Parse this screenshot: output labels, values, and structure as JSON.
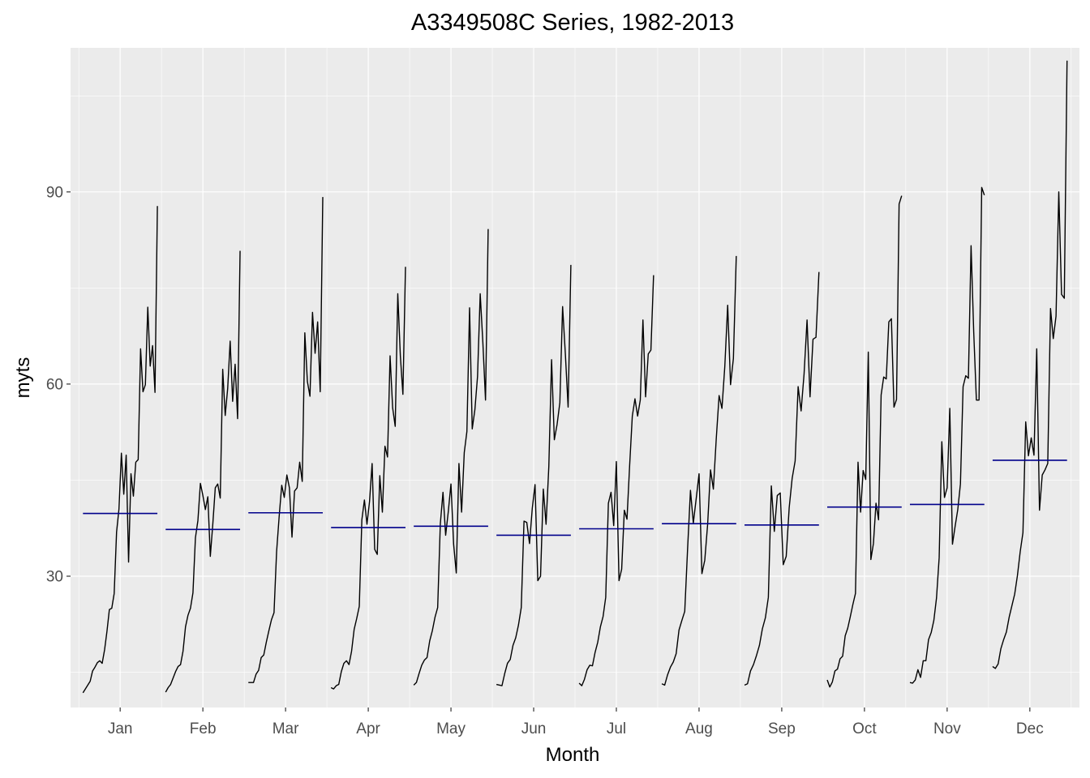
{
  "chart_data": {
    "type": "line",
    "subtype": "seasonal-subseries",
    "title": "A3349508C Series, 1982-2013",
    "xlabel": "Month",
    "ylabel": "myts",
    "ylim": [
      9.5,
      112.5
    ],
    "y_ticks": [
      30,
      60,
      90
    ],
    "grid": true,
    "series_color": "#000000",
    "mean_color": "#00008b",
    "panel_color": "#ebebeb",
    "grid_color": "#ffffff",
    "years": [
      1982,
      2013
    ],
    "months": [
      {
        "label": "Jan",
        "mean": 39.8,
        "values": [
          11.8,
          12.4,
          13.0,
          13.6,
          15.2,
          15.8,
          16.5,
          16.8,
          16.4,
          18.5,
          21.4,
          24.8,
          25.0,
          27.3,
          36.9,
          40.5,
          49.2,
          42.8,
          48.9,
          32.2,
          46.0,
          42.5,
          47.8,
          48.2,
          65.5,
          58.8,
          59.9,
          72.0,
          62.8,
          66.0,
          58.7,
          87.8
        ]
      },
      {
        "label": "Feb",
        "mean": 37.3,
        "values": [
          11.9,
          12.6,
          13.1,
          14.1,
          15.1,
          15.9,
          16.2,
          18.3,
          22.1,
          23.9,
          25.0,
          27.4,
          36.0,
          38.7,
          44.5,
          42.6,
          40.4,
          42.4,
          33.1,
          38.1,
          43.8,
          44.4,
          42.2,
          62.3,
          55.1,
          59.3,
          66.7,
          57.3,
          63.1,
          54.6,
          80.8
        ]
      },
      {
        "label": "Mar",
        "mean": 39.9,
        "values": [
          13.4,
          13.4,
          13.4,
          14.7,
          15.3,
          17.3,
          17.7,
          19.7,
          21.5,
          23.2,
          24.3,
          33.8,
          39.3,
          44.2,
          42.3,
          45.8,
          43.8,
          36.1,
          43.3,
          43.8,
          47.8,
          44.8,
          68.0,
          60.4,
          58.1,
          71.2,
          64.8,
          69.7,
          58.8,
          89.2
        ]
      },
      {
        "label": "Apr",
        "mean": 37.6,
        "values": [
          12.6,
          12.4,
          12.9,
          13.1,
          15.1,
          16.4,
          16.8,
          16.2,
          18.3,
          21.7,
          23.4,
          25.3,
          38.8,
          41.9,
          38.1,
          41.7,
          47.6,
          34.2,
          33.4,
          45.7,
          40.0,
          50.3,
          48.6,
          64.4,
          56.3,
          53.4,
          74.1,
          64.4,
          58.4,
          78.3
        ]
      },
      {
        "label": "May",
        "mean": 37.8,
        "values": [
          13.0,
          13.4,
          14.8,
          16.1,
          16.9,
          17.3,
          19.9,
          21.5,
          23.6,
          25.1,
          38.2,
          43.1,
          36.4,
          40.1,
          44.4,
          35.0,
          30.5,
          47.6,
          40.0,
          49.3,
          52.6,
          71.9,
          53.0,
          56.0,
          61.2,
          74.1,
          66.5,
          57.5,
          84.2
        ]
      },
      {
        "label": "Jun",
        "mean": 36.4,
        "values": [
          13.1,
          13.0,
          12.9,
          14.8,
          16.4,
          17.0,
          19.2,
          20.4,
          22.4,
          25.1,
          38.6,
          38.4,
          35.1,
          40.6,
          44.3,
          29.3,
          30.0,
          43.6,
          38.1,
          47.1,
          63.8,
          51.3,
          53.7,
          57.1,
          72.1,
          64.7,
          56.4,
          78.6
        ]
      },
      {
        "label": "Jul",
        "mean": 37.4,
        "values": [
          13.3,
          12.9,
          13.9,
          15.4,
          16.1,
          16.0,
          18.1,
          19.7,
          22.1,
          23.7,
          26.7,
          41.4,
          43.1,
          37.9,
          47.9,
          29.3,
          31.1,
          40.3,
          38.9,
          47.3,
          55.0,
          57.7,
          55.0,
          57.5,
          70.0,
          58.0,
          64.7,
          65.3,
          77.0
        ]
      },
      {
        "label": "Aug",
        "mean": 38.2,
        "values": [
          13.2,
          13.0,
          14.6,
          15.8,
          16.6,
          17.9,
          21.6,
          23.1,
          24.5,
          34.3,
          43.4,
          38.3,
          42.1,
          46.0,
          30.4,
          32.5,
          38.1,
          46.6,
          43.6,
          51.4,
          58.2,
          56.2,
          62.8,
          72.3,
          59.9,
          64.0,
          80.0
        ]
      },
      {
        "label": "Sep",
        "mean": 38.0,
        "values": [
          13.0,
          13.2,
          15.2,
          16.2,
          17.6,
          19.2,
          21.8,
          23.5,
          26.7,
          44.1,
          37.0,
          42.6,
          43.0,
          31.8,
          33.1,
          40.7,
          45.3,
          48.0,
          59.6,
          55.8,
          61.6,
          70.0,
          58.0,
          67.0,
          67.3,
          77.5
        ]
      },
      {
        "label": "Oct",
        "mean": 40.8,
        "values": [
          13.8,
          12.7,
          13.5,
          15.2,
          15.5,
          17.1,
          17.5,
          20.7,
          21.9,
          23.7,
          25.6,
          27.3,
          47.8,
          40.0,
          46.5,
          45.1,
          65.0,
          32.6,
          35.1,
          41.4,
          38.8,
          58.3,
          61.1,
          60.8,
          69.7,
          70.2,
          56.4,
          57.6,
          88.1,
          89.4
        ]
      },
      {
        "label": "Nov",
        "mean": 41.2,
        "values": [
          13.4,
          13.3,
          13.8,
          15.4,
          14.2,
          16.8,
          16.8,
          20.1,
          21.2,
          23.1,
          26.6,
          32.9,
          51.0,
          42.3,
          43.8,
          56.2,
          35.0,
          37.8,
          40.4,
          44.4,
          59.6,
          61.3,
          60.9,
          81.6,
          68.1,
          57.5,
          57.5,
          90.7,
          89.5
        ]
      },
      {
        "label": "Dec",
        "mean": 48.1,
        "values": [
          15.9,
          15.6,
          16.3,
          18.7,
          20.1,
          21.3,
          23.6,
          25.4,
          27.2,
          30.1,
          33.8,
          36.8,
          54.1,
          48.8,
          51.6,
          48.9,
          65.5,
          40.3,
          45.8,
          46.6,
          47.6,
          71.8,
          67.1,
          70.6,
          90.0,
          74.0,
          73.4,
          110.5
        ]
      }
    ]
  }
}
